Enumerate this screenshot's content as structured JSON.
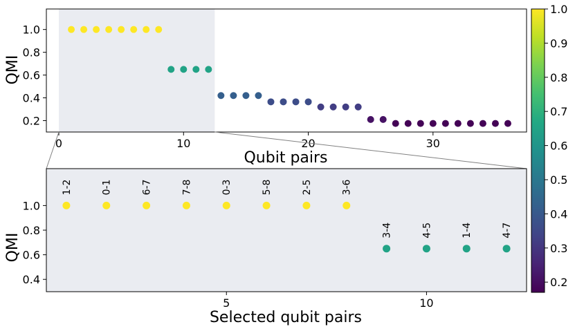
{
  "chart_data": [
    {
      "type": "scatter",
      "xlabel": "Qubit pairs",
      "ylabel": "QMI",
      "xlim": [
        -1,
        37.5
      ],
      "ylim": [
        0.1,
        1.18
      ],
      "xticks": [
        0,
        10,
        20,
        30
      ],
      "yticks": [
        0.2,
        0.4,
        0.6,
        0.8,
        1.0
      ],
      "ytick_labels": [
        "0.2",
        "0.4",
        "0.6",
        "0.8",
        "1.0"
      ],
      "highlight_range": [
        0,
        12.5
      ],
      "x": [
        1,
        2,
        3,
        4,
        5,
        6,
        7,
        8,
        9,
        10,
        11,
        12,
        13,
        14,
        15,
        16,
        17,
        18,
        19,
        20,
        21,
        22,
        23,
        24,
        25,
        26,
        27,
        28,
        29,
        30,
        31,
        32,
        33,
        34,
        35,
        36
      ],
      "y": [
        1.0,
        1.0,
        1.0,
        1.0,
        1.0,
        1.0,
        1.0,
        1.0,
        0.65,
        0.65,
        0.65,
        0.65,
        0.42,
        0.42,
        0.42,
        0.42,
        0.365,
        0.365,
        0.365,
        0.365,
        0.32,
        0.32,
        0.32,
        0.32,
        0.21,
        0.21,
        0.175,
        0.175,
        0.175,
        0.175,
        0.175,
        0.175,
        0.175,
        0.175,
        0.175,
        0.175
      ]
    },
    {
      "type": "scatter",
      "xlabel": "Selected qubit pairs",
      "ylabel": "QMI",
      "xlim": [
        0.5,
        12.5
      ],
      "ylim": [
        0.3,
        1.3
      ],
      "xticks": [
        5,
        10
      ],
      "yticks": [
        0.4,
        0.6,
        0.8,
        1.0
      ],
      "ytick_labels": [
        "0.4",
        "0.6",
        "0.8",
        "1.0"
      ],
      "x": [
        1,
        2,
        3,
        4,
        5,
        6,
        7,
        8,
        9,
        10,
        11,
        12
      ],
      "y": [
        1.0,
        1.0,
        1.0,
        1.0,
        1.0,
        1.0,
        1.0,
        1.0,
        0.65,
        0.65,
        0.65,
        0.65
      ],
      "point_labels": [
        "1-2",
        "0-1",
        "6-7",
        "7-8",
        "0-3",
        "5-8",
        "2-5",
        "3-6",
        "3-4",
        "4-5",
        "1-4",
        "4-7"
      ]
    }
  ],
  "colorbar": {
    "colormap": "viridis",
    "range": [
      0.17,
      1.0
    ],
    "ticks": [
      0.2,
      0.3,
      0.4,
      0.5,
      0.6,
      0.7,
      0.8,
      0.9,
      1.0
    ],
    "tick_labels": [
      "0.2",
      "0.3",
      "0.4",
      "0.5",
      "0.6",
      "0.7",
      "0.8",
      "0.9",
      "1.0"
    ]
  },
  "colors": {
    "highlight_background": "#eaecf1",
    "axes": "#000000",
    "connector": "#808080"
  }
}
